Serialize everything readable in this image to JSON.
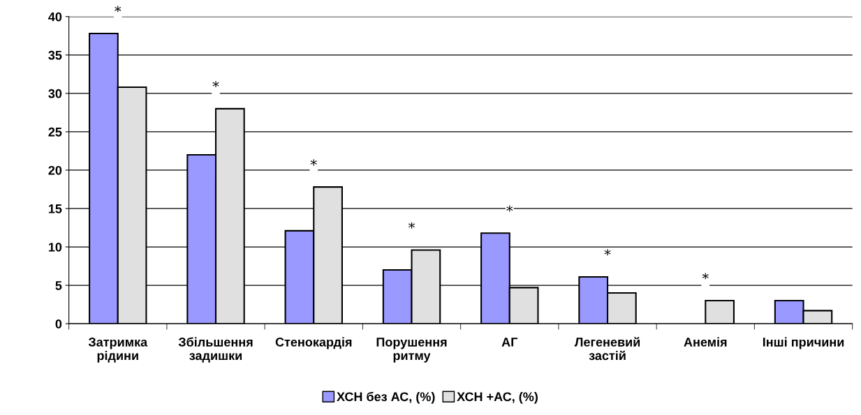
{
  "chart_data": {
    "type": "bar",
    "categories": [
      "Затримка\nрідини",
      "Збільшення\nзадишки",
      "Стенокардія",
      "Порушення\nритму",
      "АГ",
      "Легеневий\nзастій",
      "Анемія",
      "Інші причини"
    ],
    "series": [
      {
        "name": "ХСН без АС, (%)",
        "color": "#9999ff",
        "values": [
          37.8,
          22.0,
          12.1,
          7.0,
          11.8,
          6.1,
          0,
          3.0
        ]
      },
      {
        "name": "ХСН +АС, (%)",
        "color": "#e0e0e0",
        "values": [
          30.8,
          28.0,
          17.8,
          9.6,
          4.7,
          4.0,
          3.0,
          1.7
        ]
      }
    ],
    "annotations": [
      "*",
      "*",
      "*",
      "*",
      "*",
      "*",
      "*"
    ],
    "ylim": [
      0,
      40
    ],
    "yticks": [
      0,
      5,
      10,
      15,
      20,
      25,
      30,
      35,
      40
    ],
    "grid": "y",
    "legend": "bottom"
  }
}
